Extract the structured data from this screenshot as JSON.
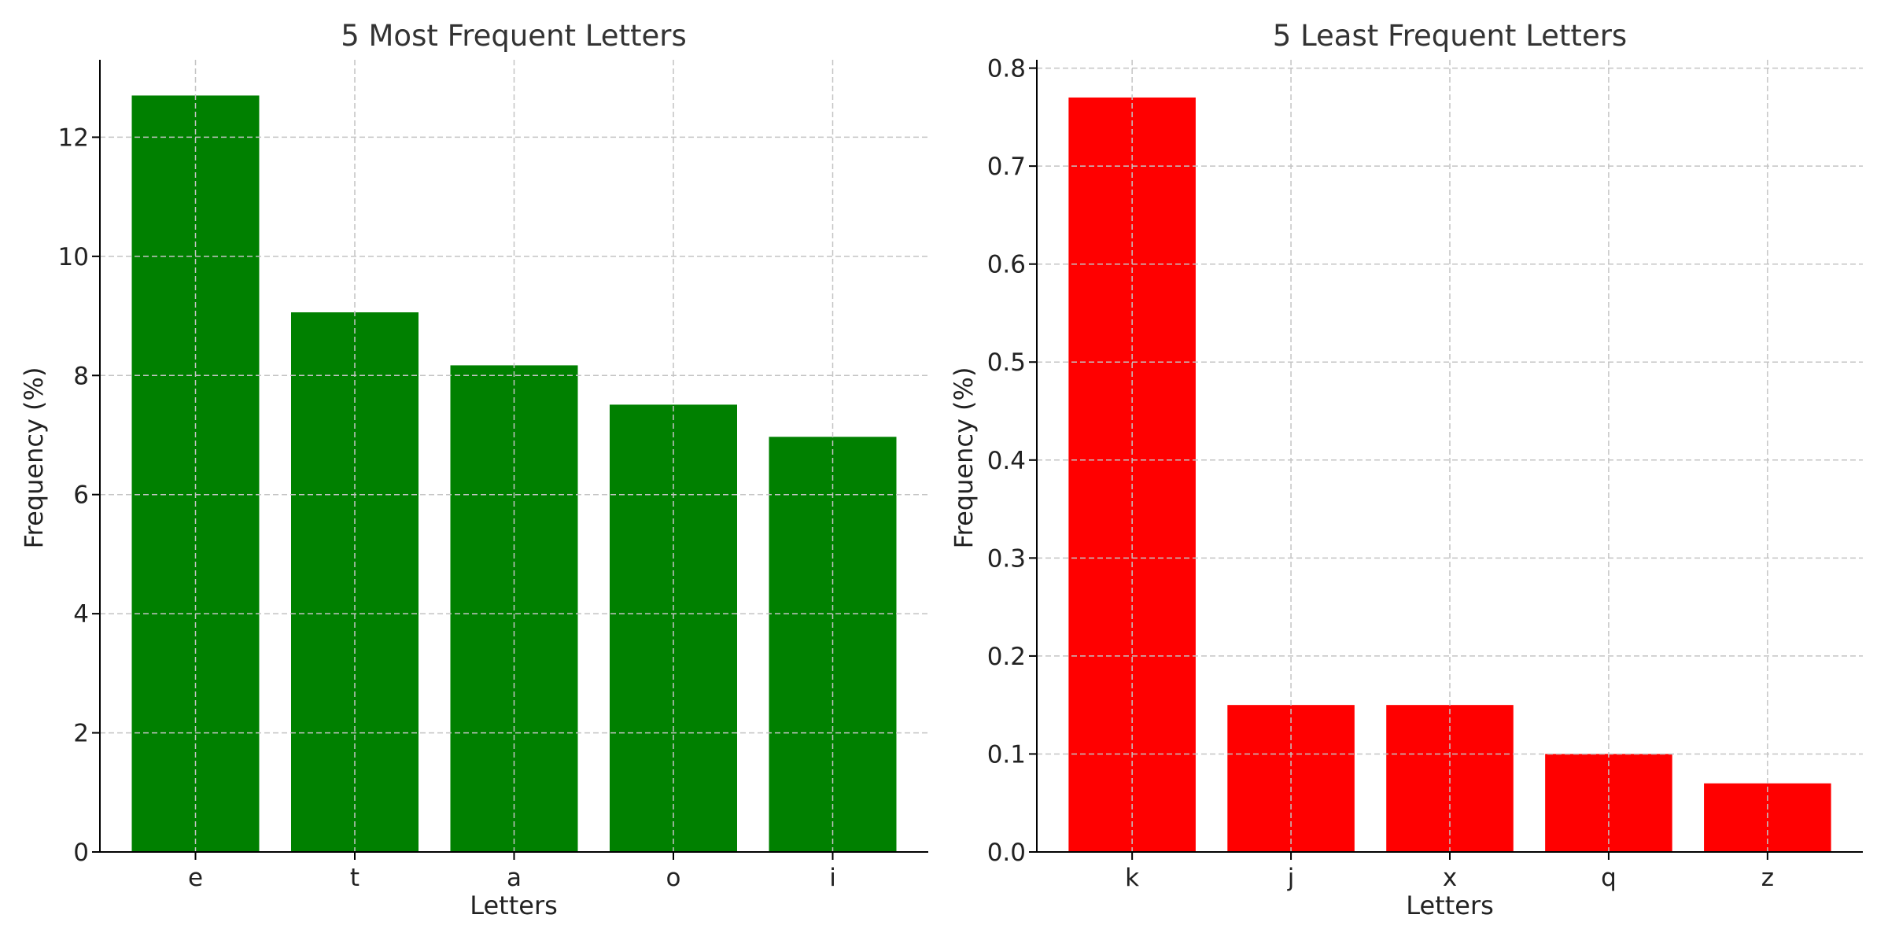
{
  "chart_data": [
    {
      "type": "bar",
      "title": "5 Most Frequent Letters",
      "xlabel": "Letters",
      "ylabel": "Frequency (%)",
      "categories": [
        "e",
        "t",
        "a",
        "o",
        "i"
      ],
      "values": [
        12.7,
        9.06,
        8.17,
        7.51,
        6.97
      ],
      "ylim": [
        0,
        13.3
      ],
      "yticks": [
        0,
        2,
        4,
        6,
        8,
        10,
        12
      ],
      "ytick_labels": [
        "0",
        "2",
        "4",
        "6",
        "8",
        "10",
        "12"
      ],
      "bar_color": "#008000",
      "grid": true
    },
    {
      "type": "bar",
      "title": "5 Least Frequent Letters",
      "xlabel": "Letters",
      "ylabel": "Frequency (%)",
      "categories": [
        "k",
        "j",
        "x",
        "q",
        "z"
      ],
      "values": [
        0.77,
        0.15,
        0.15,
        0.1,
        0.07
      ],
      "ylim": [
        0,
        0.8085
      ],
      "yticks": [
        0,
        0.1,
        0.2,
        0.3,
        0.4,
        0.5,
        0.6,
        0.7,
        0.8
      ],
      "ytick_labels": [
        "0.0",
        "0.1",
        "0.2",
        "0.3",
        "0.4",
        "0.5",
        "0.6",
        "0.7",
        "0.8"
      ],
      "bar_color": "#ff0000",
      "grid": true
    }
  ]
}
